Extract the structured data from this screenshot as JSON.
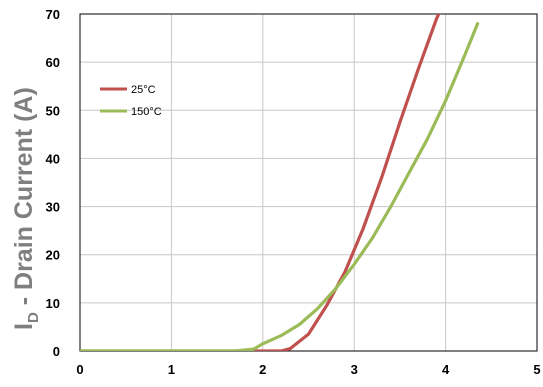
{
  "chart_data": {
    "type": "line",
    "title": "",
    "xlabel": "",
    "ylabel": {
      "main": "I",
      "subscript": "D",
      "rest": " - Drain Current (A)"
    },
    "xlim": [
      0,
      5
    ],
    "ylim": [
      0,
      70
    ],
    "xticks": [
      "0",
      "1",
      "2",
      "3",
      "4",
      "5"
    ],
    "yticks": [
      "0",
      "10",
      "20",
      "30",
      "40",
      "50",
      "60",
      "70"
    ],
    "grid": true,
    "legend_position": "upper-left",
    "series": [
      {
        "name": "25°C",
        "color": "#c0504d",
        "points": [
          [
            0,
            0
          ],
          [
            1,
            0
          ],
          [
            2,
            0
          ],
          [
            2.2,
            0
          ],
          [
            2.3,
            0.5
          ],
          [
            2.5,
            3.5
          ],
          [
            2.7,
            9.5
          ],
          [
            2.9,
            16.5
          ],
          [
            3.1,
            25.5
          ],
          [
            3.3,
            36
          ],
          [
            3.5,
            47.5
          ],
          [
            3.7,
            58.5
          ],
          [
            3.9,
            69
          ],
          [
            4.02,
            74
          ]
        ]
      },
      {
        "name": "150°C",
        "color": "#9bbb59",
        "points": [
          [
            0,
            0
          ],
          [
            1,
            0
          ],
          [
            1.7,
            0
          ],
          [
            1.9,
            0.4
          ],
          [
            2.0,
            1.5
          ],
          [
            2.2,
            3.2
          ],
          [
            2.4,
            5.5
          ],
          [
            2.6,
            8.8
          ],
          [
            2.8,
            13
          ],
          [
            3.0,
            18
          ],
          [
            3.2,
            23.5
          ],
          [
            3.4,
            30
          ],
          [
            3.6,
            37
          ],
          [
            3.8,
            44
          ],
          [
            4.0,
            52
          ],
          [
            4.2,
            61
          ],
          [
            4.35,
            68
          ]
        ]
      }
    ]
  }
}
